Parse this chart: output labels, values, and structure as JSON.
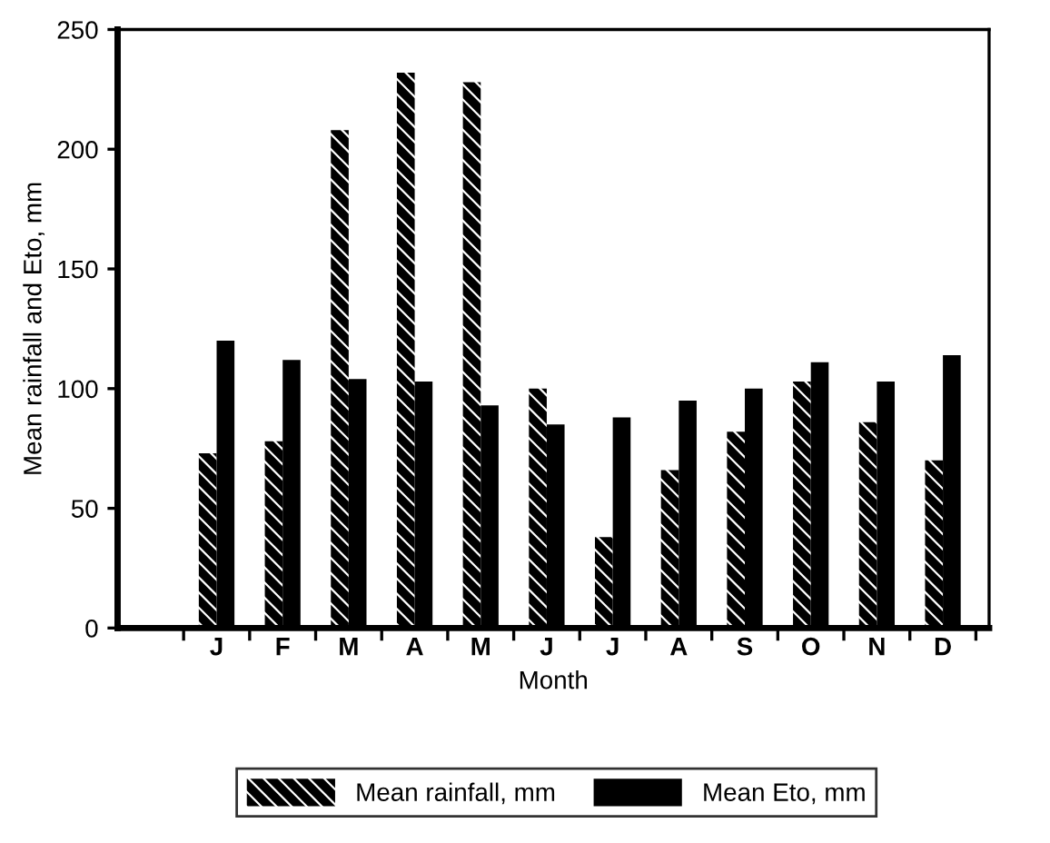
{
  "chart_data": {
    "type": "bar",
    "xlabel": "Month",
    "ylabel": "Mean rainfall and Eto, mm",
    "categories": [
      "J",
      "F",
      "M",
      "A",
      "M",
      "J",
      "J",
      "A",
      "S",
      "O",
      "N",
      "D"
    ],
    "series": [
      {
        "name": "Mean rainfall, mm",
        "color": "#000000",
        "values": [
          73,
          78,
          208,
          232,
          228,
          100,
          38,
          66,
          82,
          103,
          86,
          70
        ]
      },
      {
        "name": "Mean Eto, mm",
        "color": "#000000",
        "values": [
          120,
          112,
          104,
          103,
          93,
          85,
          88,
          95,
          100,
          111,
          103,
          114
        ]
      }
    ],
    "ylim": [
      0,
      250
    ],
    "yticks": [
      0,
      50,
      100,
      150,
      200,
      250
    ],
    "grid": false,
    "legend": "bottom"
  }
}
